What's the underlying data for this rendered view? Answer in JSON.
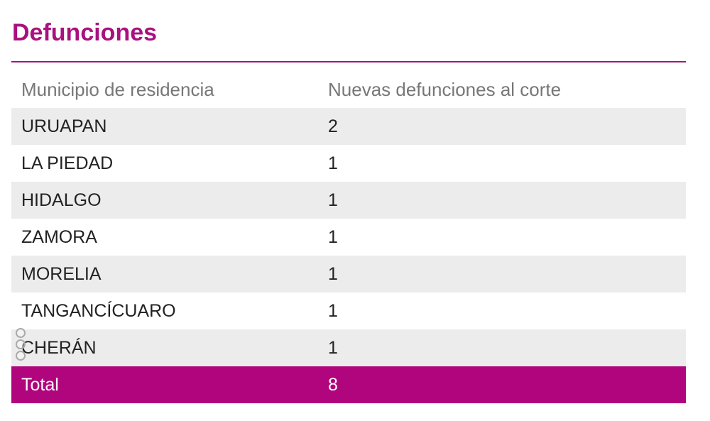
{
  "title": "Defunciones",
  "table": {
    "headers": {
      "municipio": "Municipio de residencia",
      "nuevas": "Nuevas defunciones al corte"
    },
    "rows": [
      {
        "municipio": "URUAPAN",
        "nuevas": "2"
      },
      {
        "municipio": "LA PIEDAD",
        "nuevas": "1"
      },
      {
        "municipio": "HIDALGO",
        "nuevas": "1"
      },
      {
        "municipio": "ZAMORA",
        "nuevas": "1"
      },
      {
        "municipio": "MORELIA",
        "nuevas": "1"
      },
      {
        "municipio": "TANGANCÍCUARO",
        "nuevas": "1"
      },
      {
        "municipio": "CHERÁN",
        "nuevas": "1"
      }
    ],
    "total": {
      "label": "Total",
      "value": "8"
    }
  },
  "colors": {
    "accent": "#a8117f",
    "total_bg": "#b0057d",
    "row_shade": "#ececec"
  },
  "icons": {
    "handle": "drag-handle-icon"
  }
}
